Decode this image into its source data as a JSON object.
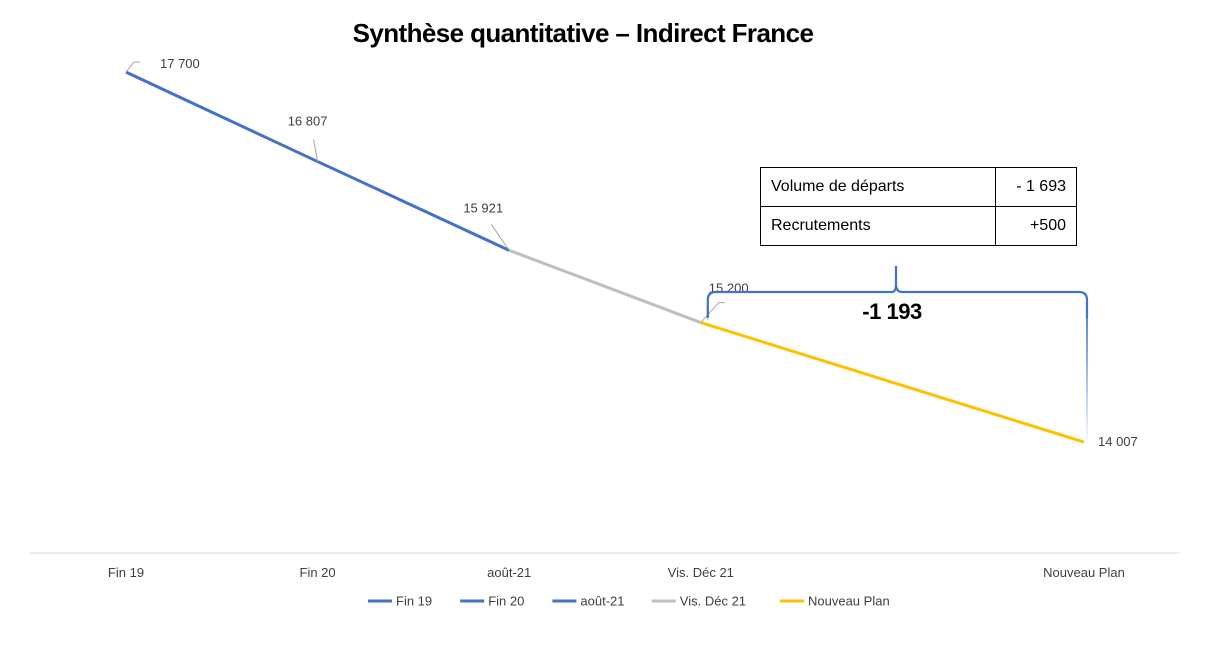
{
  "chart_data": {
    "type": "line",
    "title": "Synthèse quantitative – Indirect France",
    "categories": [
      "Fin 19",
      "Fin 20",
      "août-21",
      "Vis. Déc 21",
      "Nouveau Plan"
    ],
    "x": [
      0,
      1,
      2,
      3,
      5
    ],
    "points": [
      {
        "category": "Fin 19",
        "value": 17700,
        "label": "17 700"
      },
      {
        "category": "Fin 20",
        "value": 16807,
        "label": "16 807"
      },
      {
        "category": "août-21",
        "value": 15921,
        "label": "15 921"
      },
      {
        "category": "Vis. Déc 21",
        "value": 15200,
        "label": "15 200"
      },
      {
        "category": "Nouveau Plan",
        "value": 14007,
        "label": "14 007"
      }
    ],
    "series": [
      {
        "name": "Fin 19",
        "color": "#4472C4",
        "from": 0,
        "to": 1
      },
      {
        "name": "Fin 20",
        "color": "#4472C4",
        "from": 1,
        "to": 2
      },
      {
        "name": "août-21",
        "color": "#4472C4",
        "from": 1,
        "to": 2
      },
      {
        "name": "Vis. Déc 21",
        "color": "#BFBFBF",
        "from": 2,
        "to": 3
      },
      {
        "name": "Nouveau Plan",
        "color": "#FFC000",
        "from": 3,
        "to": 4
      }
    ],
    "ylim": [
      12900,
      18200
    ],
    "legend_position": "bottom",
    "grid": false,
    "xlabel": "",
    "ylabel": "",
    "annotation": {
      "text": "-1 193",
      "from": "Vis. Déc 21",
      "to": "Nouveau Plan",
      "color": "#4472C4"
    }
  },
  "summary_table": {
    "rows": [
      {
        "label": "Volume de départs",
        "value": "- 1 693"
      },
      {
        "label": "Recrutements",
        "value": "+500"
      }
    ]
  }
}
